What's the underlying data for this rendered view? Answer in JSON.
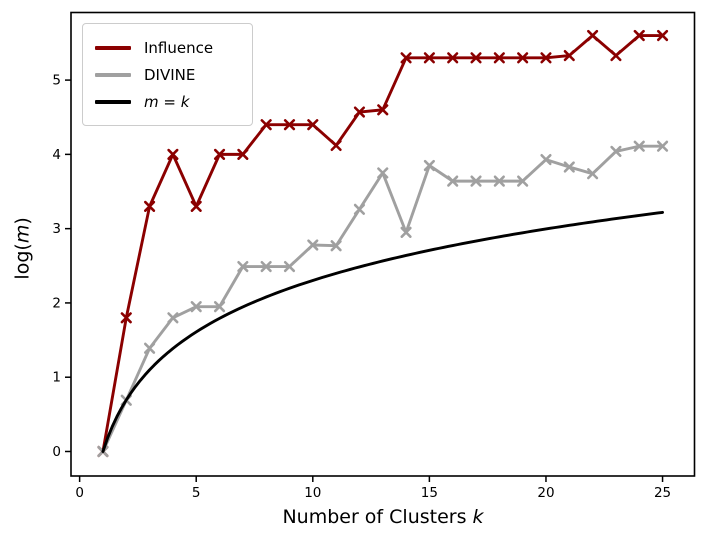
{
  "axes": {
    "xlabel_prefix": "Number of Clusters ",
    "xlabel_var": "k",
    "ylabel_prefix": "log(",
    "ylabel_var": "m",
    "ylabel_suffix": ")"
  },
  "legend": {
    "items": [
      {
        "label": "Influence",
        "color": "#8b0000"
      },
      {
        "label": "DIVINE",
        "color": "#a0a0a0"
      },
      {
        "label": "m = k",
        "var_left": "m",
        "eq": " = ",
        "var_right": "k",
        "color": "#000000"
      }
    ]
  },
  "chart_data": {
    "type": "line",
    "title": "",
    "xlabel": "Number of Clusters k",
    "ylabel": "log(m)",
    "x": [
      1,
      2,
      3,
      4,
      5,
      6,
      7,
      8,
      9,
      10,
      11,
      12,
      13,
      14,
      15,
      16,
      17,
      18,
      19,
      20,
      21,
      22,
      23,
      24,
      25
    ],
    "series": [
      {
        "name": "Influence",
        "color": "#8b0000",
        "marker": "x",
        "linewidth": 2.9,
        "values": [
          0,
          1.8,
          3.3,
          4.0,
          3.3,
          4.0,
          4.0,
          4.4,
          4.4,
          4.4,
          4.12,
          4.57,
          4.6,
          5.3,
          5.3,
          5.3,
          5.3,
          5.3,
          5.3,
          5.3,
          5.33,
          5.6,
          5.33,
          5.6,
          5.6
        ]
      },
      {
        "name": "DIVINE",
        "color": "#a0a0a0",
        "marker": "x",
        "linewidth": 2.9,
        "values": [
          0,
          0.69,
          1.39,
          1.8,
          1.95,
          1.95,
          2.49,
          2.49,
          2.49,
          2.78,
          2.77,
          3.26,
          3.75,
          2.95,
          3.85,
          3.64,
          3.64,
          3.64,
          3.64,
          3.93,
          3.83,
          3.74,
          4.04,
          4.11,
          4.11
        ]
      },
      {
        "name": "m = k",
        "color": "#000000",
        "marker": null,
        "linewidth": 2.9,
        "formula": "log(k)",
        "smooth": true,
        "values": [
          0,
          0.693,
          1.099,
          1.386,
          1.609,
          1.792,
          1.946,
          2.079,
          2.197,
          2.303,
          2.398,
          2.485,
          2.565,
          2.639,
          2.708,
          2.773,
          2.833,
          2.89,
          2.944,
          2.996,
          3.045,
          3.091,
          3.135,
          3.178,
          3.219
        ]
      }
    ],
    "xticks": [
      0,
      5,
      10,
      15,
      20,
      25
    ],
    "yticks": [
      0,
      1,
      2,
      3,
      4,
      5
    ],
    "xlim": [
      -0.37,
      26.37
    ],
    "ylim": [
      -0.33,
      5.91
    ],
    "grid": false,
    "legend_position": "upper left"
  }
}
